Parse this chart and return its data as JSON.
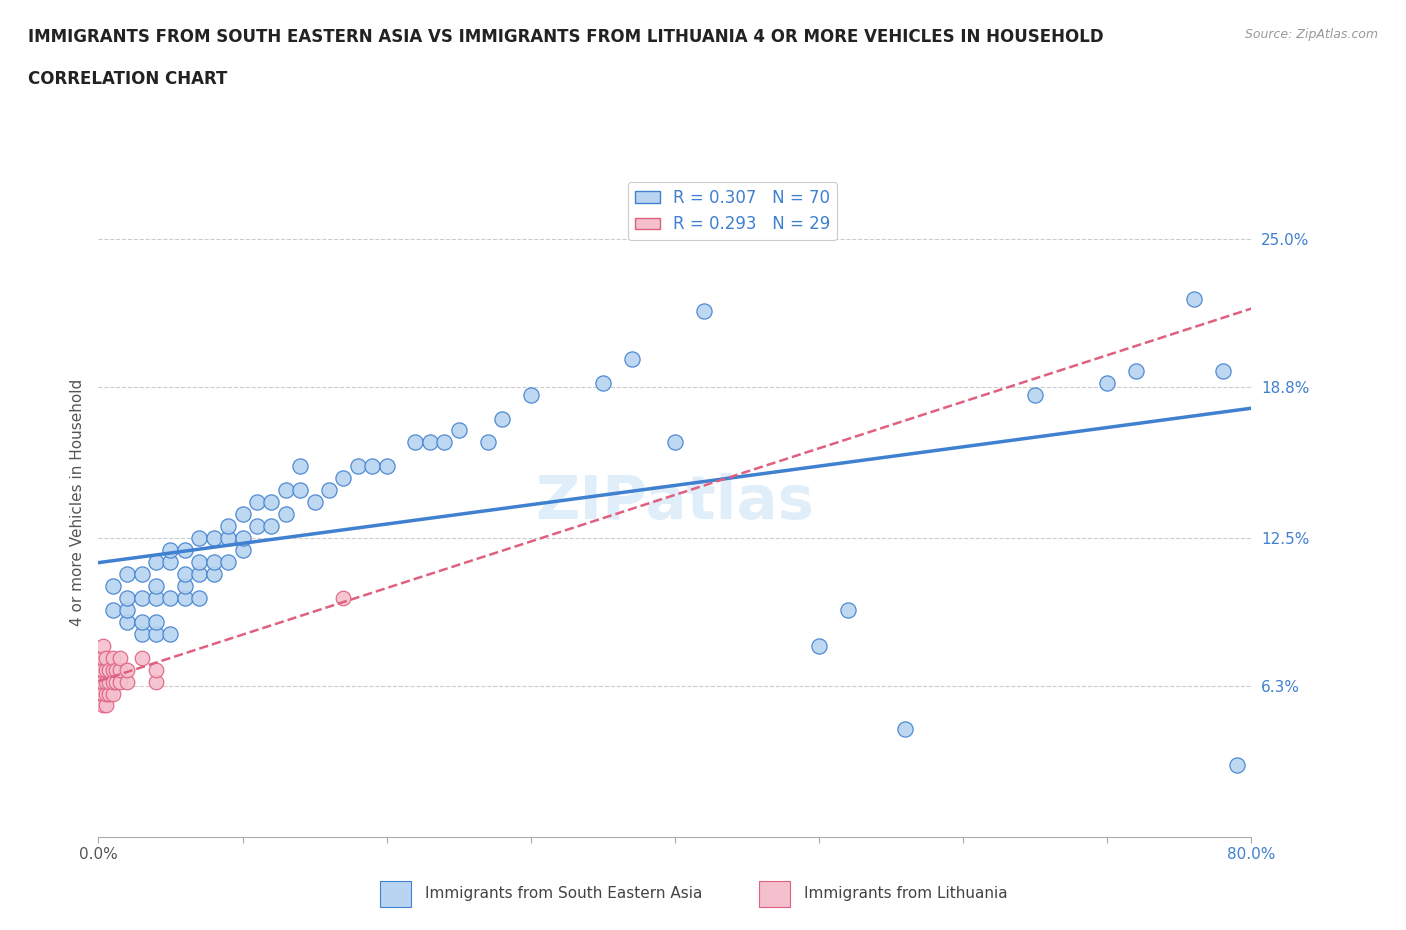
{
  "title_line1": "IMMIGRANTS FROM SOUTH EASTERN ASIA VS IMMIGRANTS FROM LITHUANIA 4 OR MORE VEHICLES IN HOUSEHOLD",
  "title_line2": "CORRELATION CHART",
  "source_text": "Source: ZipAtlas.com",
  "ylabel": "4 or more Vehicles in Household",
  "xlim": [
    0.0,
    0.8
  ],
  "ylim": [
    0.0,
    0.28
  ],
  "yticks": [
    0.0,
    0.063,
    0.125,
    0.188,
    0.25
  ],
  "ytick_labels": [
    "",
    "6.3%",
    "12.5%",
    "18.8%",
    "25.0%"
  ],
  "xticks": [
    0.0,
    0.1,
    0.2,
    0.3,
    0.4,
    0.5,
    0.6,
    0.7,
    0.8
  ],
  "xtick_labels": [
    "0.0%",
    "",
    "",
    "",
    "",
    "",
    "",
    "",
    "80.0%"
  ],
  "blue_color": "#b8d4f0",
  "blue_line_color": "#4080d0",
  "pink_color": "#f4c0ce",
  "pink_line_color": "#e06080",
  "R_blue": 0.307,
  "N_blue": 70,
  "R_pink": 0.293,
  "N_pink": 29,
  "watermark": "ZIPatlas",
  "blue_scatter_x": [
    0.01,
    0.01,
    0.02,
    0.02,
    0.02,
    0.02,
    0.03,
    0.03,
    0.03,
    0.03,
    0.04,
    0.04,
    0.04,
    0.04,
    0.04,
    0.05,
    0.05,
    0.05,
    0.05,
    0.06,
    0.06,
    0.06,
    0.06,
    0.07,
    0.07,
    0.07,
    0.07,
    0.08,
    0.08,
    0.08,
    0.09,
    0.09,
    0.09,
    0.1,
    0.1,
    0.1,
    0.11,
    0.11,
    0.12,
    0.12,
    0.13,
    0.13,
    0.14,
    0.14,
    0.15,
    0.16,
    0.17,
    0.18,
    0.19,
    0.2,
    0.22,
    0.23,
    0.24,
    0.25,
    0.27,
    0.28,
    0.3,
    0.35,
    0.37,
    0.4,
    0.42,
    0.5,
    0.52,
    0.56,
    0.65,
    0.7,
    0.72,
    0.76,
    0.78,
    0.79
  ],
  "blue_scatter_y": [
    0.095,
    0.105,
    0.09,
    0.095,
    0.1,
    0.11,
    0.085,
    0.09,
    0.1,
    0.11,
    0.085,
    0.09,
    0.1,
    0.105,
    0.115,
    0.085,
    0.1,
    0.115,
    0.12,
    0.1,
    0.105,
    0.11,
    0.12,
    0.1,
    0.11,
    0.115,
    0.125,
    0.11,
    0.115,
    0.125,
    0.115,
    0.125,
    0.13,
    0.12,
    0.125,
    0.135,
    0.13,
    0.14,
    0.13,
    0.14,
    0.135,
    0.145,
    0.145,
    0.155,
    0.14,
    0.145,
    0.15,
    0.155,
    0.155,
    0.155,
    0.165,
    0.165,
    0.165,
    0.17,
    0.165,
    0.175,
    0.185,
    0.19,
    0.2,
    0.165,
    0.22,
    0.08,
    0.095,
    0.045,
    0.185,
    0.19,
    0.195,
    0.225,
    0.195,
    0.03
  ],
  "pink_scatter_x": [
    0.003,
    0.003,
    0.003,
    0.003,
    0.003,
    0.003,
    0.005,
    0.005,
    0.005,
    0.005,
    0.005,
    0.007,
    0.007,
    0.007,
    0.01,
    0.01,
    0.01,
    0.01,
    0.012,
    0.012,
    0.015,
    0.015,
    0.015,
    0.02,
    0.02,
    0.03,
    0.04,
    0.04,
    0.17
  ],
  "pink_scatter_y": [
    0.055,
    0.06,
    0.065,
    0.07,
    0.075,
    0.08,
    0.055,
    0.06,
    0.065,
    0.07,
    0.075,
    0.06,
    0.065,
    0.07,
    0.06,
    0.065,
    0.07,
    0.075,
    0.065,
    0.07,
    0.065,
    0.07,
    0.075,
    0.065,
    0.07,
    0.075,
    0.065,
    0.07,
    0.1
  ]
}
